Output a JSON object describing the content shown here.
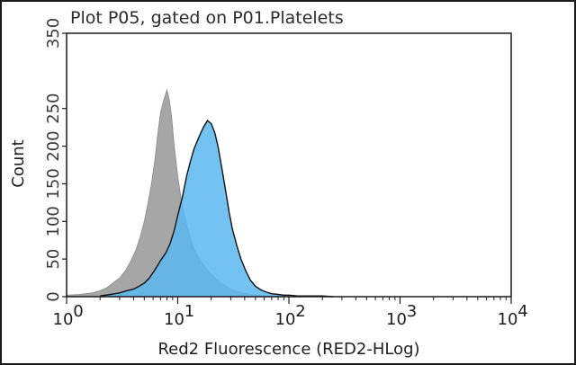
{
  "chart_data": {
    "type": "area",
    "title": "Plot P05, gated on P01.Platelets",
    "xlabel": "Red2 Fluorescence (RED2-HLog)",
    "ylabel": "Count",
    "x_scale": "log",
    "xlim": [
      1,
      10000
    ],
    "ylim": [
      0,
      350
    ],
    "x_ticks": [
      {
        "value": 1,
        "base": "10",
        "exp": "0"
      },
      {
        "value": 10,
        "base": "10",
        "exp": "1"
      },
      {
        "value": 100,
        "base": "10",
        "exp": "2"
      },
      {
        "value": 1000,
        "base": "10",
        "exp": "3"
      },
      {
        "value": 10000,
        "base": "10",
        "exp": "4"
      }
    ],
    "y_ticks": [
      {
        "value": 0,
        "label": "0"
      },
      {
        "value": 50,
        "label": "50"
      },
      {
        "value": 100,
        "label": "100"
      },
      {
        "value": 150,
        "label": "150"
      },
      {
        "value": 200,
        "label": "200"
      },
      {
        "value": 250,
        "label": "250"
      },
      {
        "value": 350,
        "label": "350"
      }
    ],
    "series": [
      {
        "color": "#a6a6a6",
        "points": [
          [
            1.0,
            2
          ],
          [
            1.3,
            3
          ],
          [
            1.7,
            5
          ],
          [
            2.0,
            8
          ],
          [
            2.3,
            12
          ],
          [
            2.6,
            18
          ],
          [
            3.0,
            25
          ],
          [
            3.4,
            35
          ],
          [
            3.8,
            48
          ],
          [
            4.2,
            62
          ],
          [
            4.6,
            80
          ],
          [
            5.0,
            100
          ],
          [
            5.4,
            125
          ],
          [
            5.8,
            150
          ],
          [
            6.2,
            180
          ],
          [
            6.6,
            215
          ],
          [
            7.0,
            245
          ],
          [
            7.5,
            262
          ],
          [
            8.0,
            275
          ],
          [
            8.4,
            262
          ],
          [
            8.8,
            240
          ],
          [
            9.3,
            200
          ],
          [
            10.0,
            160
          ],
          [
            11.0,
            120
          ],
          [
            12.0,
            95
          ],
          [
            13.5,
            70
          ],
          [
            15.0,
            55
          ],
          [
            17.0,
            42
          ],
          [
            19.0,
            33
          ],
          [
            22.0,
            24
          ],
          [
            26.0,
            16
          ],
          [
            30.0,
            10
          ],
          [
            36.0,
            6
          ],
          [
            45.0,
            3
          ],
          [
            60.0,
            1
          ],
          [
            80.0,
            0
          ]
        ]
      },
      {
        "color": "#5ab8f0",
        "points": [
          [
            2.0,
            1
          ],
          [
            2.5,
            3
          ],
          [
            3.0,
            5
          ],
          [
            3.5,
            8
          ],
          [
            4.0,
            10
          ],
          [
            4.5,
            14
          ],
          [
            5.0,
            18
          ],
          [
            5.5,
            24
          ],
          [
            6.0,
            32
          ],
          [
            6.5,
            40
          ],
          [
            7.0,
            48
          ],
          [
            7.8,
            58
          ],
          [
            8.5,
            70
          ],
          [
            9.3,
            88
          ],
          [
            10.0,
            108
          ],
          [
            11.0,
            132
          ],
          [
            12.0,
            160
          ],
          [
            13.0,
            180
          ],
          [
            14.0,
            196
          ],
          [
            15.5,
            212
          ],
          [
            17.0,
            225
          ],
          [
            18.5,
            234
          ],
          [
            20.0,
            230
          ],
          [
            21.5,
            218
          ],
          [
            23.0,
            200
          ],
          [
            25.0,
            170
          ],
          [
            27.0,
            140
          ],
          [
            29.0,
            112
          ],
          [
            31.0,
            90
          ],
          [
            34.0,
            68
          ],
          [
            37.0,
            50
          ],
          [
            41.0,
            34
          ],
          [
            45.0,
            22
          ],
          [
            50.0,
            14
          ],
          [
            56.0,
            9
          ],
          [
            63.0,
            6
          ],
          [
            70.0,
            4
          ],
          [
            80.0,
            3
          ],
          [
            90.0,
            2
          ],
          [
            100.0,
            2
          ],
          [
            120.0,
            1
          ],
          [
            150.0,
            1
          ],
          [
            200.0,
            1
          ],
          [
            250.0,
            0
          ]
        ]
      }
    ],
    "grid": false,
    "legend": "none"
  }
}
